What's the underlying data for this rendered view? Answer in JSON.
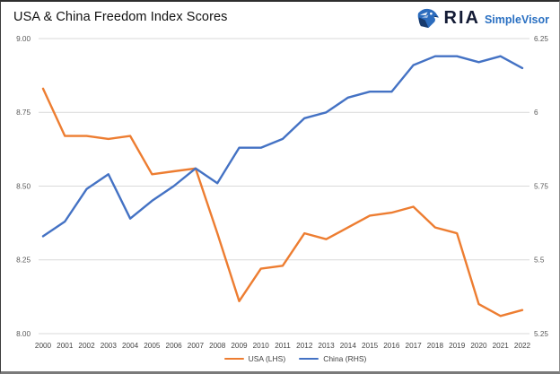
{
  "header": {
    "title": "USA & China Freedom Index Scores",
    "logo": {
      "brand": "RIA",
      "product": "SimpleVisor",
      "brand_color": "#131b35",
      "product_color": "#2a70c2",
      "eagle_colors": {
        "main": "#2c6cbd",
        "dark": "#173a6d",
        "accent": "#ffffff"
      }
    }
  },
  "chart_data": {
    "type": "line",
    "title": "USA & China Freedom Index Scores",
    "categories": [
      "2000",
      "2001",
      "2002",
      "2003",
      "2004",
      "2005",
      "2006",
      "2007",
      "2008",
      "2009",
      "2010",
      "2011",
      "2012",
      "2013",
      "2014",
      "2015",
      "2016",
      "2017",
      "2018",
      "2019",
      "2020",
      "2021",
      "2022"
    ],
    "series": [
      {
        "name": "USA (LHS)",
        "axis": "left",
        "color": "#ED7D31",
        "values": [
          8.83,
          8.67,
          8.67,
          8.66,
          8.67,
          8.54,
          8.55,
          8.56,
          8.34,
          8.11,
          8.22,
          8.23,
          8.34,
          8.32,
          8.36,
          8.4,
          8.41,
          8.43,
          8.36,
          8.34,
          8.1,
          8.06,
          8.08
        ]
      },
      {
        "name": "China (RHS)",
        "axis": "right",
        "color": "#4472C4",
        "values": [
          5.58,
          5.63,
          5.74,
          5.79,
          5.64,
          5.7,
          5.75,
          5.81,
          5.76,
          5.88,
          5.88,
          5.91,
          5.98,
          6.0,
          6.05,
          6.07,
          6.07,
          6.16,
          6.19,
          6.19,
          6.17,
          6.19,
          6.15
        ]
      }
    ],
    "left_axis": {
      "ticks": [
        "9.00",
        "8.75",
        "8.50",
        "8.25",
        "8.00"
      ],
      "min": 8.0,
      "max": 9.0
    },
    "right_axis": {
      "ticks": [
        "6.25",
        "6",
        "5.75",
        "5.5",
        "5.25"
      ],
      "min": 5.25,
      "max": 6.25
    },
    "grid": "horizontal-on",
    "legend_position": "bottom",
    "gridline_color": "#D9D9D9",
    "tick_color": "#595959",
    "year_label_color": "#454545"
  }
}
